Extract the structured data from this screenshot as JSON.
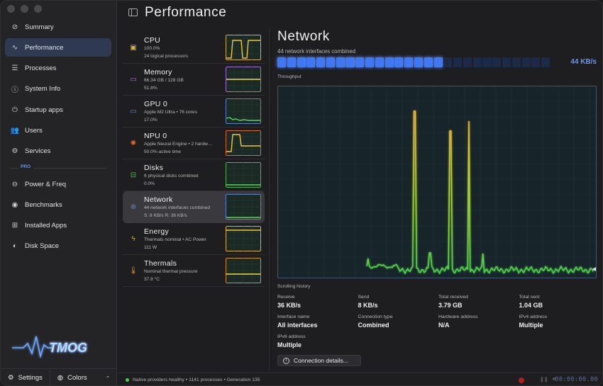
{
  "sidebar": {
    "items": [
      {
        "label": "Summary",
        "icon": "gauge-icon",
        "glyph": "⊘"
      },
      {
        "label": "Performance",
        "icon": "pulse-icon",
        "glyph": "∿"
      },
      {
        "label": "Processes",
        "icon": "list-icon",
        "glyph": "☰"
      },
      {
        "label": "System Info",
        "icon": "info-icon",
        "glyph": "ⓘ"
      },
      {
        "label": "Startup apps",
        "icon": "power-icon",
        "glyph": "⏻"
      },
      {
        "label": "Users",
        "icon": "users-icon",
        "glyph": "👥"
      },
      {
        "label": "Services",
        "icon": "services-icon",
        "glyph": "⚙"
      }
    ],
    "pro_label": "PRO",
    "pro_items": [
      {
        "label": "Power & Freq",
        "icon": "power-freq-icon",
        "glyph": "⊖"
      },
      {
        "label": "Benchmarks",
        "icon": "benchmark-icon",
        "glyph": "◉"
      },
      {
        "label": "Installed Apps",
        "icon": "apps-icon",
        "glyph": "⊞"
      },
      {
        "label": "Disk Space",
        "icon": "disk-icon",
        "glyph": "◐"
      }
    ],
    "logo_text": "TMOG",
    "footer": {
      "settings": "Settings",
      "colors": "Colors"
    }
  },
  "header": {
    "title": "Performance"
  },
  "resources": [
    {
      "name": "CPU",
      "line1": "100.0%",
      "line2": "24 logical processors",
      "icon": "cpu-icon",
      "glyph": "▣",
      "color": "#f2c830",
      "border": "#d8b248"
    },
    {
      "name": "Memory",
      "line1": "66.34 GB / 128 GB",
      "line2": "51.8%",
      "icon": "memory-icon",
      "glyph": "▭",
      "color": "#f0e040",
      "border": "#a870d8"
    },
    {
      "name": "GPU 0",
      "line1": "Apple M2 Ultra • 76 cores",
      "line2": "17.0%",
      "icon": "gpu-icon",
      "glyph": "▭",
      "color": "#5ad55a",
      "border": "#5f82c8"
    },
    {
      "name": "NPU 0",
      "line1": "Apple Neural Engine • 2 hardw…",
      "line2": "50.0% active time",
      "icon": "npu-icon",
      "glyph": "✺",
      "color": "#f2c830",
      "border": "#e06a30"
    },
    {
      "name": "Disks",
      "line1": "6 physical disks combined",
      "line2": "0.0%",
      "icon": "disk-drive-icon",
      "glyph": "⊟",
      "color": "#5ad55a",
      "border": "#56b456"
    },
    {
      "name": "Network",
      "line1": "44 network interfaces combined",
      "line2": "S: 8 KB/s  R: 36 KB/s",
      "icon": "globe-icon",
      "glyph": "⊕",
      "color": "#5ad55a",
      "border": "#5f82c8"
    },
    {
      "name": "Energy",
      "line1": "Thermals nominal • AC Power",
      "line2": "111 W",
      "icon": "energy-icon",
      "glyph": "ϟ",
      "color": "#f2c830",
      "border": "#e0b040"
    },
    {
      "name": "Thermals",
      "line1": "Nominal thermal pressure",
      "line2": "37.8 °C",
      "icon": "thermometer-icon",
      "glyph": "🌡",
      "color": "#f0e040",
      "border": "#d8902a"
    }
  ],
  "detail": {
    "title": "Network",
    "subtitle": "44 network interfaces combined",
    "meter_value": "44 KB/s",
    "meter_fill": 0.6,
    "throughput_label": "Throughput",
    "scrolling_label": "Scrolling history",
    "connection_button": "Connection details...",
    "stats": [
      {
        "label": "Receive",
        "value": "36 KB/s"
      },
      {
        "label": "Send",
        "value": "8 KB/s"
      },
      {
        "label": "Total received",
        "value": "3.79 GB"
      },
      {
        "label": "Total sent",
        "value": "1.04 GB"
      },
      {
        "label": "Interface name",
        "value": "All interfaces"
      },
      {
        "label": "Connection type",
        "value": "Combined"
      },
      {
        "label": "Hardware address",
        "value": "N/A"
      },
      {
        "label": "IPv4 address",
        "value": "Multiple"
      },
      {
        "label": "IPv6 address",
        "value": "Multiple"
      }
    ]
  },
  "status": {
    "text": "Native providers healthy • 1141 processes • Generation 135",
    "timer": "00:00:00.00"
  },
  "colors": {
    "accent": "#3f78f2",
    "line_green": "#5ad55a",
    "line_yellow": "#f2c830"
  }
}
